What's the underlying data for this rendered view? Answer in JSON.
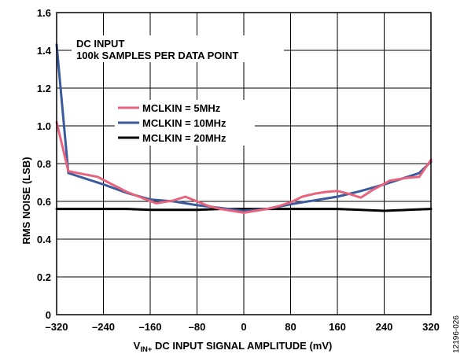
{
  "chart_data": {
    "type": "line",
    "xlabel": {
      "main": "V",
      "sub": "IN+",
      "rest": " DC INPUT SIGNAL AMPLITUDE (mV)"
    },
    "ylabel": "RMS NOISE (LSB)",
    "xlim": [
      -320,
      320
    ],
    "ylim": [
      0,
      1.6
    ],
    "xticks": [
      -320,
      -240,
      -160,
      -80,
      0,
      80,
      160,
      240,
      320
    ],
    "xtick_labels": [
      "–320",
      "–240",
      "–160",
      "–80",
      "0",
      "80",
      "160",
      "240",
      "320"
    ],
    "yticks": [
      0,
      0.2,
      0.4,
      0.6,
      0.8,
      1.0,
      1.2,
      1.4,
      1.6
    ],
    "ytick_labels": [
      "0",
      "0.2",
      "0.4",
      "0.6",
      "0.8",
      "1.0",
      "1.2",
      "1.4",
      "1.6"
    ],
    "grid": true,
    "annotation": [
      "DC INPUT",
      "100k SAMPLES PER DATA POINT"
    ],
    "figure_code": "12196-026",
    "legend_position": "upper-middle",
    "series": [
      {
        "name": "MCLKIN = 5MHz",
        "color": "#e8637c",
        "x": [
          -320,
          -300,
          -250,
          -200,
          -150,
          -120,
          -100,
          -80,
          -60,
          -40,
          -20,
          0,
          20,
          40,
          60,
          80,
          100,
          120,
          140,
          160,
          180,
          200,
          220,
          250,
          280,
          300,
          320
        ],
        "y": [
          1.02,
          0.76,
          0.73,
          0.65,
          0.59,
          0.605,
          0.625,
          0.6,
          0.575,
          0.56,
          0.55,
          0.54,
          0.55,
          0.56,
          0.575,
          0.595,
          0.625,
          0.64,
          0.65,
          0.655,
          0.64,
          0.62,
          0.66,
          0.71,
          0.725,
          0.73,
          0.82
        ]
      },
      {
        "name": "MCLKIN = 10MHz",
        "color": "#3a5a9e",
        "x": [
          -320,
          -300,
          -240,
          -200,
          -160,
          -120,
          -80,
          -40,
          0,
          40,
          80,
          120,
          160,
          200,
          240,
          280,
          300,
          320
        ],
        "y": [
          1.43,
          0.75,
          0.69,
          0.645,
          0.61,
          0.6,
          0.58,
          0.565,
          0.55,
          0.56,
          0.585,
          0.605,
          0.625,
          0.655,
          0.69,
          0.73,
          0.75,
          0.81
        ]
      },
      {
        "name": "MCLKIN = 20MHz",
        "color": "#000000",
        "x": [
          -320,
          -280,
          -240,
          -200,
          -160,
          -120,
          -80,
          -40,
          0,
          40,
          80,
          120,
          160,
          200,
          240,
          280,
          320
        ],
        "y": [
          0.56,
          0.56,
          0.56,
          0.56,
          0.555,
          0.555,
          0.555,
          0.56,
          0.56,
          0.56,
          0.56,
          0.56,
          0.56,
          0.555,
          0.55,
          0.555,
          0.56
        ]
      }
    ]
  }
}
